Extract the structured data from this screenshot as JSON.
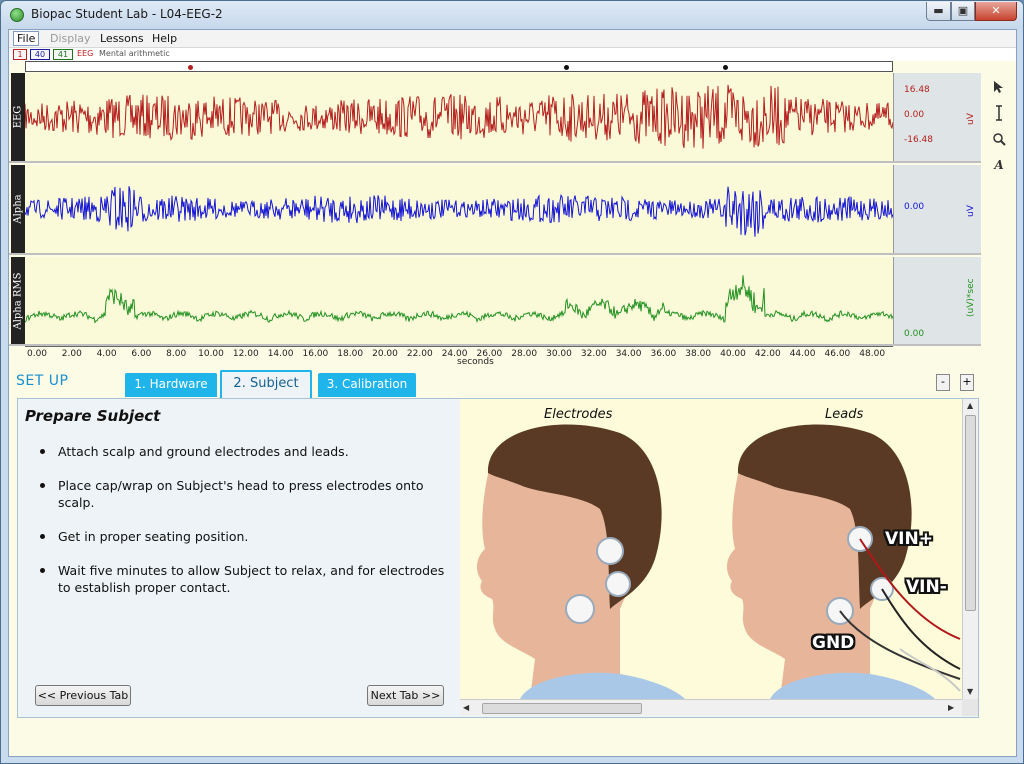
{
  "window": {
    "title": "Biopac Student Lab - L04-EEG-2",
    "min_label": "▬",
    "max_label": "▣",
    "close_label": "✕"
  },
  "menu": {
    "items": [
      {
        "label": "File"
      },
      {
        "label": "Display"
      },
      {
        "label": "Lessons"
      },
      {
        "label": "Help"
      }
    ]
  },
  "channel_bar": {
    "buttons": [
      "1",
      "40",
      "41"
    ],
    "channel_name": "EEG",
    "event_label": "Mental arithmetic"
  },
  "channels": [
    {
      "label": "EEG",
      "color": "#b51e1e",
      "scale_values": [
        "16.48",
        "0.00",
        "-16.48"
      ],
      "units": "uV"
    },
    {
      "label": "Alpha",
      "color": "#1414d6",
      "scale_values": [
        "0.00"
      ],
      "units": "uV"
    },
    {
      "label": "Alpha RMS",
      "color": "#229122",
      "scale_values": [
        "0.00"
      ],
      "units": "(uV)*sec"
    }
  ],
  "time_axis": {
    "ticks": [
      "0.00",
      "2.00",
      "4.00",
      "6.00",
      "8.00",
      "10.00",
      "12.00",
      "14.00",
      "16.00",
      "18.00",
      "20.00",
      "22.00",
      "24.00",
      "26.00",
      "28.00",
      "30.00",
      "32.00",
      "34.00",
      "36.00",
      "38.00",
      "40.00",
      "42.00",
      "44.00",
      "46.00",
      "48.00"
    ],
    "unit_label": "seconds"
  },
  "setup": {
    "label": "SET UP",
    "tabs": [
      {
        "label": "1. Hardware"
      },
      {
        "label": "2. Subject"
      },
      {
        "label": "3. Calibration"
      }
    ],
    "minus_label": "-",
    "plus_label": "+"
  },
  "panel": {
    "title": "Prepare Subject",
    "bullets": [
      "Attach scalp and ground electrodes and leads.",
      "Place cap/wrap on Subject's head to press electrodes onto scalp.",
      "Get in proper seating position.",
      "Wait five minutes to allow Subject to relax, and for electrodes to establish proper contact."
    ],
    "prev_button": "<< Previous Tab",
    "next_button": "Next Tab >>",
    "captions": {
      "left": "Electrodes",
      "right": "Leads"
    },
    "lead_labels": {
      "vin_plus": "VIN+",
      "vin_minus": "VIN-",
      "gnd": "GND"
    }
  },
  "tools": [
    "pointer-icon",
    "ibeam-icon",
    "zoom-icon",
    "annotate-icon"
  ]
}
